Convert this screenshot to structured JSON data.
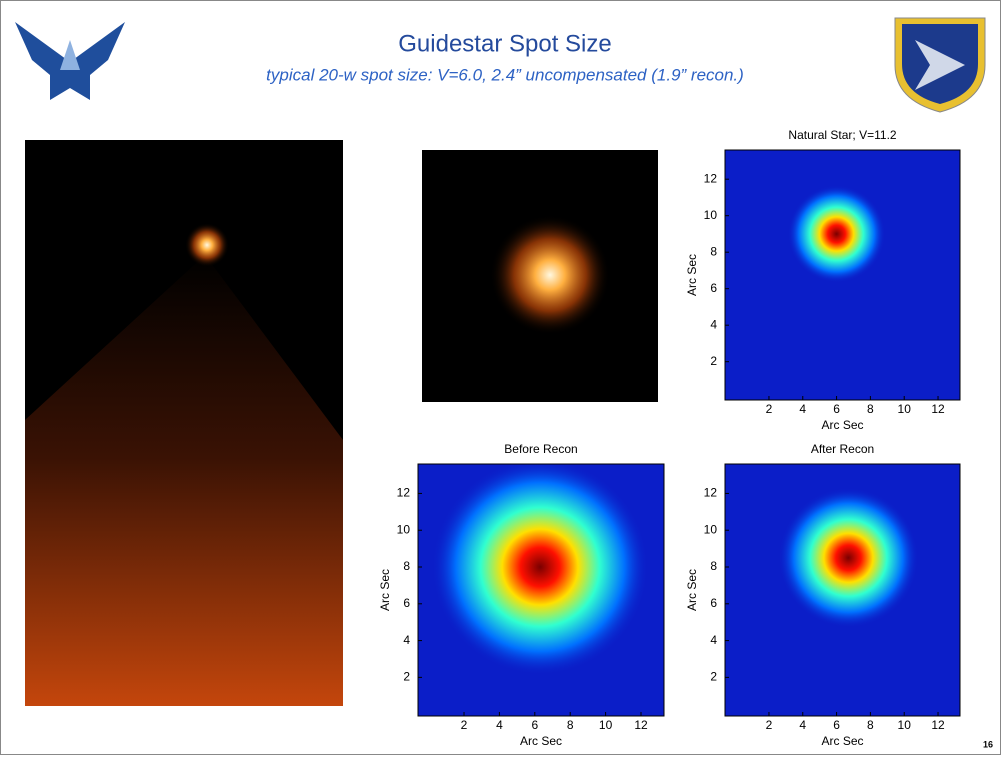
{
  "header": {
    "title": "Guidestar Spot Size",
    "subtitle": "typical 20-w spot size: V=6.0, 2.4” uncompensated (1.9” recon.)"
  },
  "plots": [
    {
      "title": "Natural Star; V=11.2",
      "xlabel": "Arc Sec",
      "ylabel": "Arc Sec",
      "xlim": [
        -0.6,
        13.3
      ],
      "ylim": [
        -0.1,
        13.6
      ],
      "xticks": [
        2,
        4,
        6,
        8,
        10,
        12
      ],
      "yticks": [
        2,
        4,
        6,
        8,
        10,
        12
      ],
      "spot_center": [
        6,
        9
      ],
      "spot_radius": 1.6
    },
    {
      "title": "Before Recon",
      "xlabel": "Arc Sec",
      "ylabel": "Arc Sec",
      "xlim": [
        -0.6,
        13.3
      ],
      "ylim": [
        -0.1,
        13.6
      ],
      "xticks": [
        2,
        4,
        6,
        8,
        10,
        12
      ],
      "yticks": [
        2,
        4,
        6,
        8,
        10,
        12
      ],
      "spot_center": [
        6.3,
        8
      ],
      "spot_radius": 3.4
    },
    {
      "title": "After Recon",
      "xlabel": "Arc Sec",
      "ylabel": "Arc Sec",
      "xlim": [
        -0.6,
        13.3
      ],
      "ylim": [
        -0.1,
        13.6
      ],
      "xticks": [
        2,
        4,
        6,
        8,
        10,
        12
      ],
      "yticks": [
        2,
        4,
        6,
        8,
        10,
        12
      ],
      "spot_center": [
        6.7,
        8.5
      ],
      "spot_radius": 2.3
    }
  ],
  "page_number": "16"
}
